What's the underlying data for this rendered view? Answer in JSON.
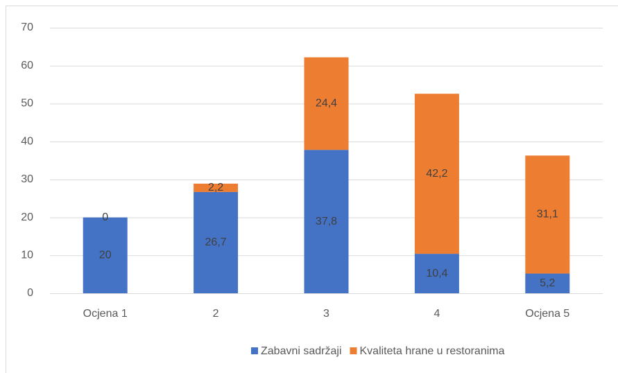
{
  "chart_data": {
    "type": "stacked_bar",
    "categories": [
      "Ocjena 1",
      "2",
      "3",
      "4",
      "Ocjena 5"
    ],
    "series": [
      {
        "name": "Zabavni sadržaji",
        "color": "#4472c4",
        "values": [
          20,
          26.7,
          37.8,
          10.4,
          5.2
        ],
        "value_labels": [
          "20",
          "26,7",
          "37,8",
          "10,4",
          "5,2"
        ]
      },
      {
        "name": "Kvaliteta hrane u restoranima",
        "color": "#ed7d31",
        "values": [
          0,
          2.2,
          24.4,
          42.2,
          31.1
        ],
        "value_labels": [
          "0",
          "2,2",
          "24,4",
          "42,2",
          "31,1"
        ]
      }
    ],
    "ylim": [
      0,
      70
    ],
    "yticks": [
      0,
      10,
      20,
      30,
      40,
      50,
      60,
      70
    ],
    "grid": true,
    "legend": "bottom"
  }
}
